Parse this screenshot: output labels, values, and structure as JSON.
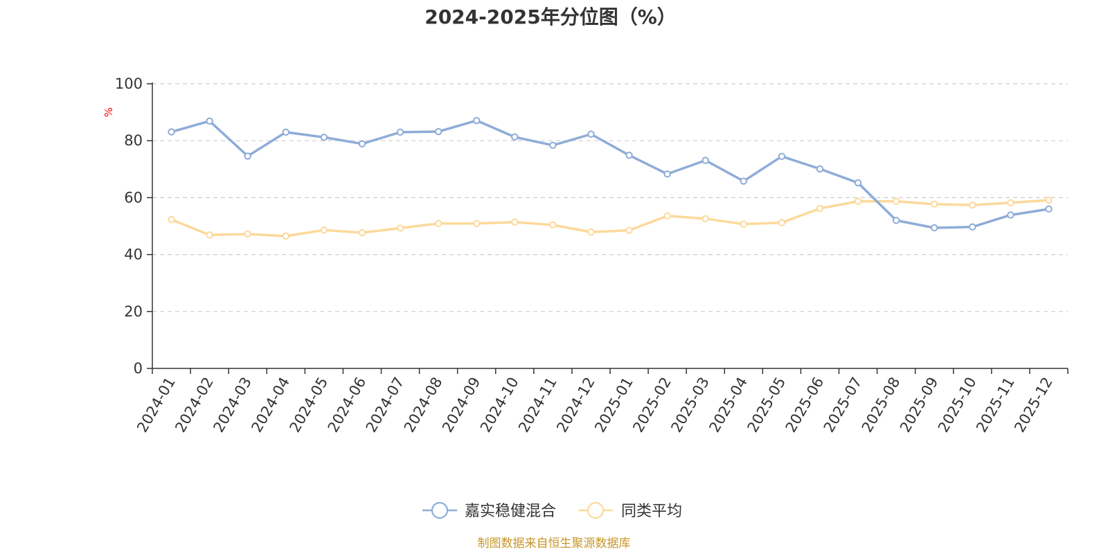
{
  "chart_data": {
    "type": "line",
    "title": "2024-2025年分位图（%）",
    "ylabel": "%",
    "xlabel": "",
    "ylim": [
      0,
      100
    ],
    "yticks": [
      0,
      20,
      40,
      60,
      80,
      100
    ],
    "grid": true,
    "legend_position": "bottom-center",
    "categories": [
      "2024-01",
      "2024-02",
      "2024-03",
      "2024-04",
      "2024-05",
      "2024-06",
      "2024-07",
      "2024-08",
      "2024-09",
      "2024-10",
      "2024-11",
      "2024-12",
      "2025-01",
      "2025-02",
      "2025-03",
      "2025-04",
      "2025-05",
      "2025-06",
      "2025-07",
      "2025-08",
      "2025-09",
      "2025-10",
      "2025-11",
      "2025-12"
    ],
    "series": [
      {
        "name": "嘉实稳健混合",
        "color": "#8eacd8",
        "values": [
          83.1,
          86.9,
          74.6,
          83.0,
          81.2,
          78.9,
          83.0,
          83.2,
          87.1,
          81.3,
          78.4,
          82.3,
          74.9,
          68.3,
          73.1,
          65.8,
          74.5,
          70.1,
          65.2,
          52.0,
          49.4,
          49.7,
          53.9,
          56.0
        ]
      },
      {
        "name": "同类平均",
        "color": "#fcd99b",
        "values": [
          52.3,
          46.9,
          47.2,
          46.5,
          48.6,
          47.7,
          49.3,
          50.9,
          50.9,
          51.4,
          50.4,
          47.9,
          48.5,
          53.6,
          52.6,
          50.7,
          51.2,
          56.2,
          58.7,
          58.7,
          57.7,
          57.4,
          58.2,
          59.1
        ]
      }
    ],
    "source": "制图数据来自恒生聚源数据库",
    "source_color": "#c8962a",
    "unit_color": "#ff0000"
  }
}
